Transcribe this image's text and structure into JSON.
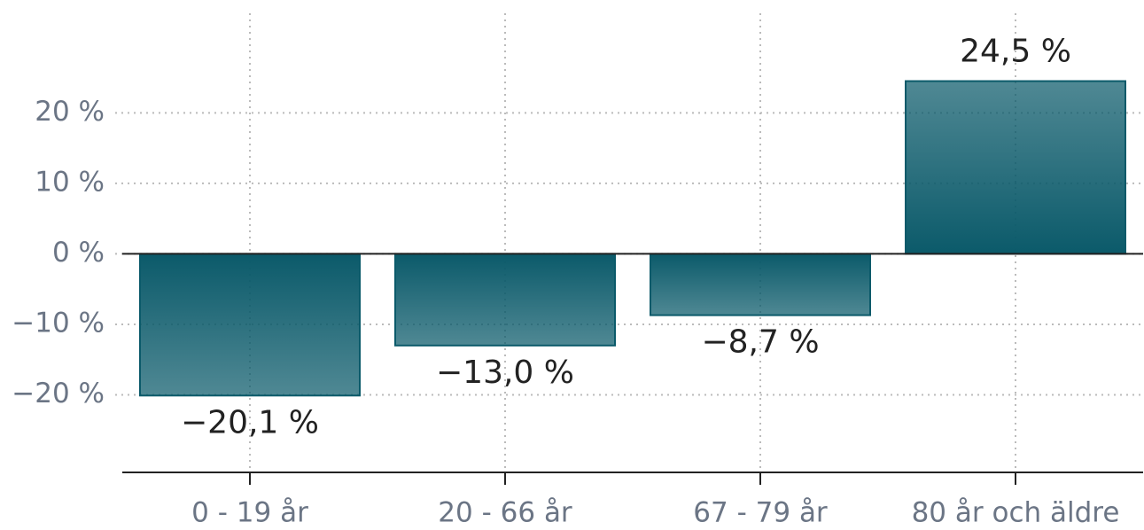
{
  "chart_data": {
    "type": "bar",
    "categories": [
      "0 - 19 år",
      "20 - 66 år",
      "67 - 79 år",
      "80 år och äldre"
    ],
    "values": [
      -20.1,
      -13.0,
      -8.7,
      24.5
    ],
    "value_labels": [
      "−20,1 %",
      "−13,0 %",
      "−8,7 %",
      "24,5 %"
    ],
    "color": "#0b5a6a",
    "ylim": [
      -31,
      35
    ],
    "yticks": [
      {
        "value": -20,
        "label": "−20 %"
      },
      {
        "value": -10,
        "label": "−10 %"
      },
      {
        "value": 0,
        "label": "0 %"
      },
      {
        "value": 10,
        "label": "10 %"
      },
      {
        "value": 20,
        "label": "20 %"
      }
    ],
    "grid": true
  }
}
